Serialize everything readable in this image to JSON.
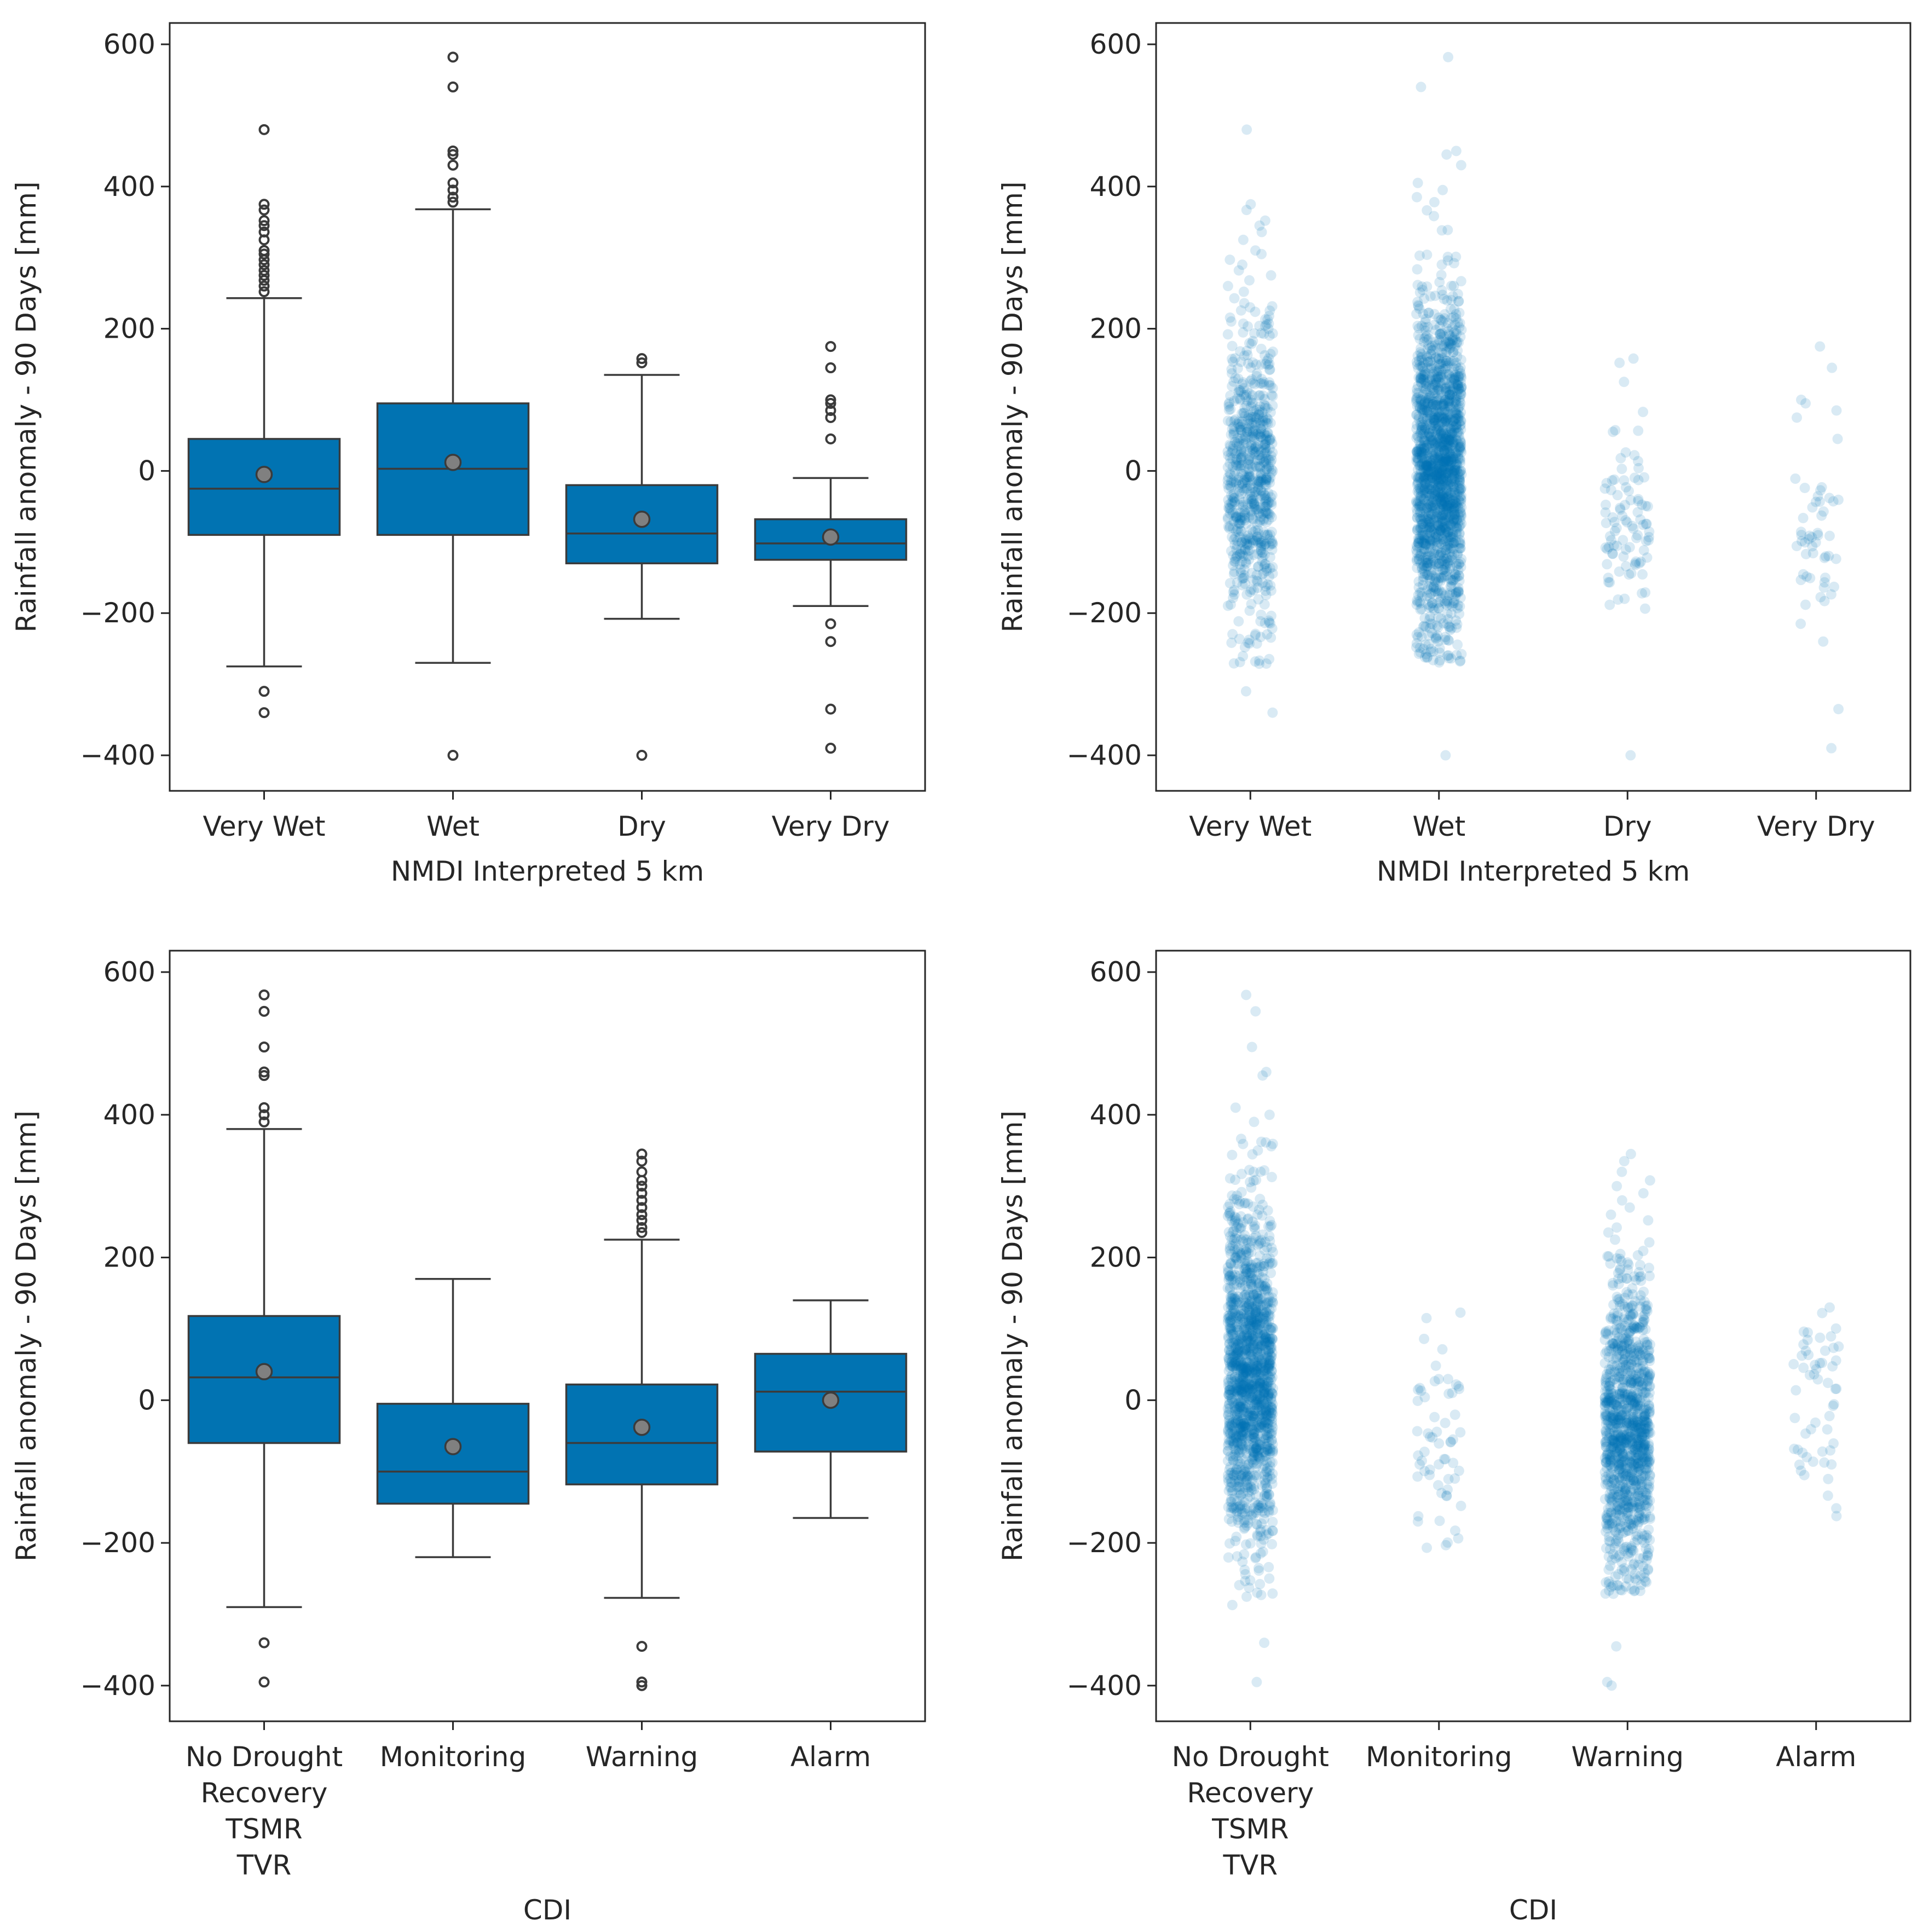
{
  "colors": {
    "box_fill": "#0173b2",
    "line": "#3b3b3b",
    "mean_marker": "#808080",
    "strip_point": "#0173b2",
    "axes": "#262626",
    "text": "#262626"
  },
  "chart_data": [
    {
      "type": "box",
      "panel": "top-left",
      "title": "",
      "xlabel": "NMDI Interpreted 5 km",
      "ylabel": "Rainfall anomaly - 90 Days [mm]",
      "ylim": [
        -450,
        630
      ],
      "yticks": [
        600,
        400,
        200,
        0,
        -200,
        -400
      ],
      "ytick_labels": [
        "600",
        "400",
        "200",
        "0",
        "−200",
        "−400"
      ],
      "categories": [
        {
          "label": [
            "Very Wet"
          ],
          "whisker_low": -275,
          "q1": -90,
          "median": -25,
          "q3": 45,
          "whisker_high": 243,
          "mean": -5,
          "outliers": [
            480,
            375,
            367,
            352,
            345,
            336,
            325,
            310,
            305,
            297,
            290,
            282,
            275,
            268,
            260,
            252,
            -310,
            -340
          ]
        },
        {
          "label": [
            "Wet"
          ],
          "whisker_low": -270,
          "q1": -90,
          "median": 3,
          "q3": 95,
          "whisker_high": 368,
          "mean": 12,
          "outliers": [
            582,
            540,
            450,
            445,
            430,
            405,
            395,
            385,
            378,
            -400
          ]
        },
        {
          "label": [
            "Dry"
          ],
          "whisker_low": -208,
          "q1": -130,
          "median": -88,
          "q3": -20,
          "whisker_high": 135,
          "mean": -68,
          "outliers": [
            158,
            152,
            -400
          ]
        },
        {
          "label": [
            "Very Dry"
          ],
          "whisker_low": -190,
          "q1": -125,
          "median": -102,
          "q3": -68,
          "whisker_high": -10,
          "mean": -93,
          "outliers": [
            175,
            145,
            100,
            95,
            85,
            75,
            45,
            -215,
            -240,
            -335,
            -390
          ]
        }
      ]
    },
    {
      "type": "scatter",
      "panel": "top-right",
      "title": "",
      "xlabel": "NMDI Interpreted 5 km",
      "ylabel": "Rainfall anomaly - 90 Days [mm]",
      "ylim": [
        -450,
        630
      ],
      "yticks": [
        600,
        400,
        200,
        0,
        -200,
        -400
      ],
      "ytick_labels": [
        "600",
        "400",
        "200",
        "0",
        "−200",
        "−400"
      ],
      "point_alpha": 0.15,
      "categories": [
        {
          "label": [
            "Very Wet"
          ],
          "n": 700,
          "core_mean": -15,
          "core_sd": 100,
          "lo": -275,
          "hi": 243,
          "extremes": [
            480,
            375,
            367,
            352,
            345,
            336,
            325,
            310,
            305,
            297,
            290,
            282,
            275,
            268,
            260,
            252,
            -310,
            -340
          ]
        },
        {
          "label": [
            "Wet"
          ],
          "n": 1700,
          "core_mean": 5,
          "core_sd": 115,
          "lo": -270,
          "hi": 368,
          "extremes": [
            582,
            540,
            450,
            445,
            430,
            405,
            395,
            385,
            378,
            -400
          ]
        },
        {
          "label": [
            "Dry"
          ],
          "n": 90,
          "core_mean": -70,
          "core_sd": 75,
          "lo": -208,
          "hi": 135,
          "extremes": [
            158,
            152,
            -400
          ]
        },
        {
          "label": [
            "Very Dry"
          ],
          "n": 45,
          "core_mean": -95,
          "core_sd": 60,
          "lo": -190,
          "hi": -10,
          "extremes": [
            175,
            145,
            100,
            95,
            85,
            75,
            45,
            -215,
            -240,
            -335,
            -390
          ]
        }
      ]
    },
    {
      "type": "box",
      "panel": "bottom-left",
      "title": "",
      "xlabel": "CDI",
      "ylabel": "Rainfall anomaly - 90 Days [mm]",
      "ylim": [
        -450,
        630
      ],
      "yticks": [
        600,
        400,
        200,
        0,
        -200,
        -400
      ],
      "ytick_labels": [
        "600",
        "400",
        "200",
        "0",
        "−200",
        "−400"
      ],
      "categories": [
        {
          "label": [
            "No Drought",
            "Recovery",
            "TSMR",
            "TVR"
          ],
          "whisker_low": -290,
          "q1": -60,
          "median": 32,
          "q3": 118,
          "whisker_high": 380,
          "mean": 40,
          "outliers": [
            568,
            545,
            495,
            460,
            455,
            410,
            400,
            390,
            -340,
            -395
          ]
        },
        {
          "label": [
            "Monitoring"
          ],
          "whisker_low": -220,
          "q1": -145,
          "median": -100,
          "q3": -5,
          "whisker_high": 170,
          "mean": -65,
          "outliers": []
        },
        {
          "label": [
            "Warning"
          ],
          "whisker_low": -277,
          "q1": -118,
          "median": -60,
          "q3": 22,
          "whisker_high": 225,
          "mean": -38,
          "outliers": [
            345,
            335,
            320,
            308,
            300,
            290,
            280,
            270,
            260,
            252,
            242,
            235,
            -345,
            -395,
            -400
          ]
        },
        {
          "label": [
            "Alarm"
          ],
          "whisker_low": -165,
          "q1": -72,
          "median": 12,
          "q3": 65,
          "whisker_high": 140,
          "mean": 0,
          "outliers": []
        }
      ]
    },
    {
      "type": "scatter",
      "panel": "bottom-right",
      "title": "",
      "xlabel": "CDI",
      "ylabel": "Rainfall anomaly - 90 Days [mm]",
      "ylim": [
        -450,
        630
      ],
      "yticks": [
        600,
        400,
        200,
        0,
        -200,
        -400
      ],
      "ytick_labels": [
        "600",
        "400",
        "200",
        "0",
        "−200",
        "−400"
      ],
      "point_alpha": 0.15,
      "categories": [
        {
          "label": [
            "No Drought",
            "Recovery",
            "TSMR",
            "TVR"
          ],
          "n": 1500,
          "core_mean": 35,
          "core_sd": 120,
          "lo": -290,
          "hi": 380,
          "extremes": [
            568,
            545,
            495,
            460,
            455,
            410,
            400,
            390,
            -340,
            -395
          ]
        },
        {
          "label": [
            "Monitoring"
          ],
          "n": 60,
          "core_mean": -60,
          "core_sd": 90,
          "lo": -220,
          "hi": 170,
          "extremes": []
        },
        {
          "label": [
            "Warning"
          ],
          "n": 1100,
          "core_mean": -45,
          "core_sd": 105,
          "lo": -277,
          "hi": 225,
          "extremes": [
            345,
            335,
            320,
            308,
            300,
            290,
            280,
            270,
            260,
            252,
            242,
            235,
            -345,
            -395,
            -400
          ]
        },
        {
          "label": [
            "Alarm"
          ],
          "n": 55,
          "core_mean": 0,
          "core_sd": 80,
          "lo": -165,
          "hi": 140,
          "extremes": []
        }
      ]
    }
  ]
}
